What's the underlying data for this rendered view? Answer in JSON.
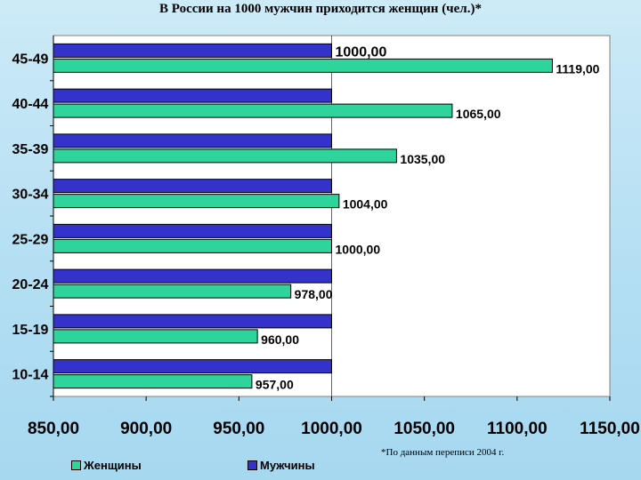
{
  "chart_data": {
    "type": "bar",
    "orientation": "horizontal",
    "title": "В России на 1000 мужчин приходится женщин (чел.)*",
    "categories": [
      "45-49",
      "40-44",
      "35-39",
      "30-34",
      "25-29",
      "20-24",
      "15-19",
      "10-14"
    ],
    "series": [
      {
        "name": "Мужчины",
        "color": "#3333cc",
        "values": [
          1000,
          1000,
          1000,
          1000,
          1000,
          1000,
          1000,
          1000
        ],
        "labels": [
          "1000,00",
          "",
          "",
          "",
          "",
          "",
          "",
          ""
        ]
      },
      {
        "name": "Женщины",
        "color": "#2ed49b",
        "values": [
          1119,
          1065,
          1035,
          1004,
          1000,
          978,
          960,
          957
        ],
        "labels": [
          "1119,00",
          "1065,00",
          "1035,00",
          "1004,00",
          "1000,00",
          "978,00",
          "960,00",
          "957,00"
        ]
      }
    ],
    "xlim": [
      850,
      1150
    ],
    "xticks": [
      850,
      900,
      950,
      1000,
      1050,
      1100,
      1150
    ],
    "xtick_labels": [
      "850,00",
      "900,00",
      "950,00",
      "1000,00",
      "1050,00",
      "1100,00",
      "1150,00"
    ],
    "legend_position": "bottom-left",
    "grid": false
  },
  "footnote": "*По данным переписи 2004 г.",
  "legend": {
    "women": "Женщины",
    "men": "Мужчины"
  }
}
